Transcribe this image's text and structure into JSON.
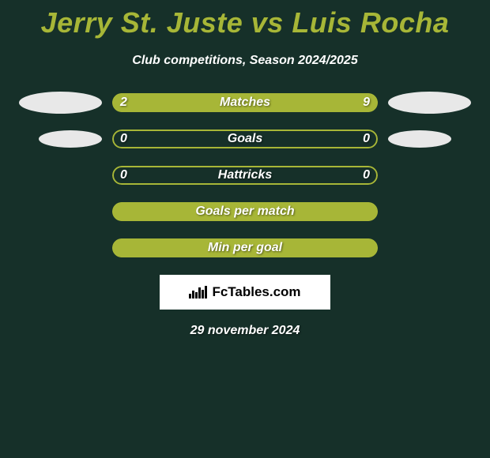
{
  "title": "Jerry St. Juste vs Luis Rocha",
  "subtitle": "Club competitions, Season 2024/2025",
  "colors": {
    "background": "#163029",
    "accent": "#a7b637",
    "oval": "#e8e8e8",
    "logo_bg": "#ffffff",
    "text": "#ffffff"
  },
  "stats": [
    {
      "label": "Matches",
      "left_value": "2",
      "right_value": "9",
      "left_pct": 18,
      "right_pct": 82,
      "show_left_oval": true,
      "show_right_oval": true,
      "show_values": true
    },
    {
      "label": "Goals",
      "left_value": "0",
      "right_value": "0",
      "left_pct": 0,
      "right_pct": 0,
      "show_left_oval": true,
      "show_right_oval": true,
      "show_values": true
    },
    {
      "label": "Hattricks",
      "left_value": "0",
      "right_value": "0",
      "left_pct": 0,
      "right_pct": 0,
      "show_left_oval": false,
      "show_right_oval": false,
      "show_values": true
    },
    {
      "label": "Goals per match",
      "left_value": "",
      "right_value": "",
      "left_pct": 100,
      "right_pct": 0,
      "show_left_oval": false,
      "show_right_oval": false,
      "show_values": false
    },
    {
      "label": "Min per goal",
      "left_value": "",
      "right_value": "",
      "left_pct": 100,
      "right_pct": 0,
      "show_left_oval": false,
      "show_right_oval": false,
      "show_values": false
    }
  ],
  "logo_text": "FcTables.com",
  "date_text": "29 november 2024"
}
